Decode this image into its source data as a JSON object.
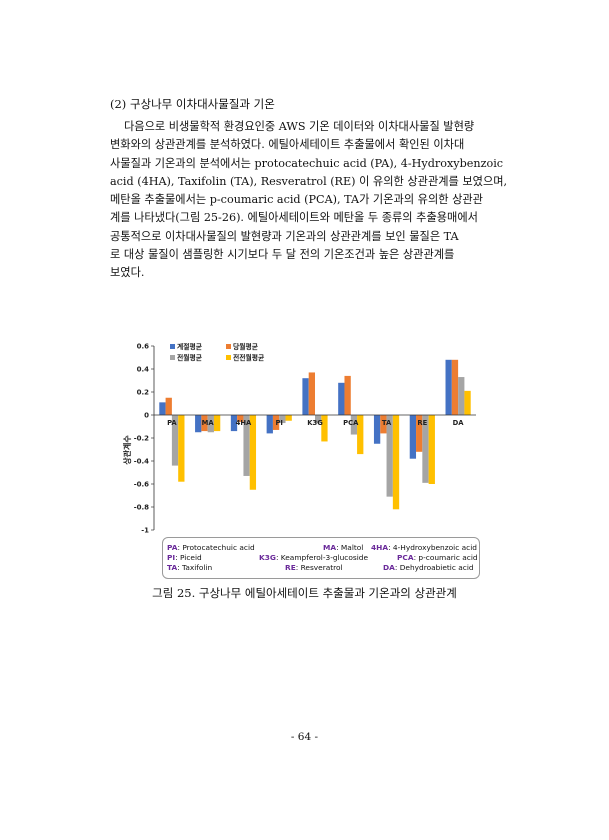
{
  "section_heading": "(2) 구상나무 이차대사물질과 기온",
  "paragraph_lines": [
    "다음으로 비생물학적 환경요인중 AWS 기온 데이터와 이차대사물질 발현량",
    "변화와의 상관관계를 분석하였다. 에틸아세테이트 추출물에서 확인된 이차대",
    "사물질과 기온과의 분석에서는 protocatechuic acid (PA), 4-Hydroxybenzoic",
    "acid (4HA), Taxifolin (TA), Resveratrol (RE) 이 유의한 상관관계를 보였으며,",
    "메탄올 추출물에서는 p-coumaric acid (PCA), TA가 기온과의 유의한 상관관",
    "계를 나타냈다(그림 25-26). 에틸아세테이트와 메탄올 두 종류의 추출용매에서",
    "공통적으로 이차대사물질의 발현량과 기온과의 상관관계를 보인 물질은 TA",
    "로 대상 물질이 샘플링한 시기보다 두 달 전의 기온조건과 높은 상관관계를",
    "보였다."
  ],
  "chart_data": {
    "type": "bar",
    "categories": [
      "PA",
      "MA",
      "4HA",
      "PI",
      "K3G",
      "PCA",
      "TA",
      "RE",
      "DA"
    ],
    "series": [
      {
        "name": "계절평균",
        "color": "#4472c4",
        "values": [
          0.11,
          -0.15,
          -0.14,
          -0.16,
          0.32,
          0.28,
          -0.25,
          -0.38,
          0.48
        ]
      },
      {
        "name": "당월평균",
        "color": "#ed7d31",
        "values": [
          0.15,
          -0.14,
          -0.06,
          -0.13,
          0.37,
          0.34,
          -0.16,
          -0.32,
          0.48
        ]
      },
      {
        "name": "전월평균",
        "color": "#a5a5a5",
        "values": [
          -0.44,
          -0.15,
          -0.53,
          -0.07,
          -0.07,
          -0.17,
          -0.71,
          -0.59,
          0.33
        ]
      },
      {
        "name": "전전월평균",
        "color": "#ffc000",
        "values": [
          -0.58,
          -0.14,
          -0.65,
          -0.05,
          -0.23,
          -0.34,
          -0.82,
          -0.6,
          0.21
        ]
      }
    ],
    "ylabel": "상관계수",
    "ylim": [
      -1,
      0.6
    ],
    "yticks": [
      "0.6",
      "0.4",
      "0.2",
      "0",
      "-0.2",
      "-0.4",
      "-0.6",
      "-0.8",
      "-1"
    ],
    "grid": false,
    "legend_position": "top-left"
  },
  "abbreviations": [
    [
      {
        "key": "PA",
        "name": "Protocatechuic acid"
      },
      {
        "key": "MA",
        "name": "Maltol"
      },
      {
        "key": "4HA",
        "name": "4-Hydroxybenzoic acid"
      }
    ],
    [
      {
        "key": "PI",
        "name": "Piceid"
      },
      {
        "key": "K3G",
        "name": "Keampferol-3-glucoside"
      },
      {
        "key": "PCA",
        "name": "p-coumaric acid"
      }
    ],
    [
      {
        "key": "TA",
        "name": "Taxifolin"
      },
      {
        "key": "RE",
        "name": "Resveratrol"
      },
      {
        "key": "DA",
        "name": "Dehydroabietic acid"
      }
    ]
  ],
  "figure_caption": "그림 25. 구상나무 에틸아세테이트 추출물과 기온과의 상관관계",
  "page_number": "- 64 -"
}
